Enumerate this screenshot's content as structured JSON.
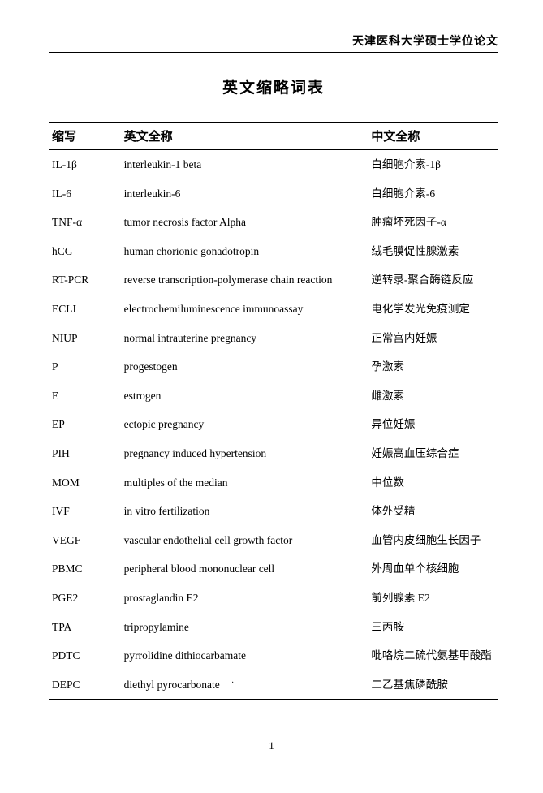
{
  "page": {
    "university_header": "天津医科大学硕士学位论文",
    "title": "英文缩略词表",
    "page_number": "1",
    "table": {
      "type": "table",
      "headers": {
        "abbr": "缩写",
        "english": "英文全称",
        "chinese": "中文全称"
      },
      "columns_width_pct": [
        16,
        55,
        29
      ],
      "font_size_header": 15,
      "font_size_body": 13.5,
      "border_color": "#000000",
      "background_color": "#ffffff",
      "text_color": "#000000",
      "rows": [
        {
          "abbr": "IL-1β",
          "english": "interleukin-1 beta",
          "chinese": "白细胞介素-1β"
        },
        {
          "abbr": "IL-6",
          "english": "interleukin-6",
          "chinese": "白细胞介素-6"
        },
        {
          "abbr": "TNF-α",
          "english": "tumor necrosis factor Alpha",
          "chinese": "肿瘤坏死因子-α"
        },
        {
          "abbr": "hCG",
          "english": "human chorionic gonadotropin",
          "chinese": "绒毛膜促性腺激素"
        },
        {
          "abbr": "RT-PCR",
          "english": "reverse transcription-polymerase chain reaction",
          "chinese": "逆转录-聚合酶链反应"
        },
        {
          "abbr": "ECLI",
          "english": "electrochemiluminescence immunoassay",
          "chinese": "电化学发光免疫测定"
        },
        {
          "abbr": "NIUP",
          "english": "normal intrauterine pregnancy",
          "chinese": "正常宫内妊娠"
        },
        {
          "abbr": "P",
          "english": "progestogen",
          "chinese": "孕激素"
        },
        {
          "abbr": "E",
          "english": "estrogen",
          "chinese": "雌激素"
        },
        {
          "abbr": "EP",
          "english": "ectopic pregnancy",
          "chinese": "异位妊娠"
        },
        {
          "abbr": "PIH",
          "english": "pregnancy induced hypertension",
          "chinese": "妊娠高血压综合症"
        },
        {
          "abbr": "MOM",
          "english": "multiples of the median",
          "chinese": "中位数"
        },
        {
          "abbr": "IVF",
          "english": "in vitro fertilization",
          "chinese": "体外受精"
        },
        {
          "abbr": "VEGF",
          "english": "vascular endothelial cell growth factor",
          "chinese": "血管内皮细胞生长因子"
        },
        {
          "abbr": "PBMC",
          "english": "peripheral blood mononuclear cell",
          "chinese": "外周血单个核细胞"
        },
        {
          "abbr": "PGE2",
          "english": "prostaglandin E2",
          "chinese": "前列腺素 E2"
        },
        {
          "abbr": "TPA",
          "english": "tripropylamine",
          "chinese": "三丙胺"
        },
        {
          "abbr": "PDTC",
          "english": "pyrrolidine dithiocarbamate",
          "chinese": "吡咯烷二硫代氨基甲酸酯"
        },
        {
          "abbr": "DEPC",
          "english": "diethyl pyrocarbonate",
          "chinese": "二乙基焦磷酰胺"
        }
      ]
    }
  }
}
